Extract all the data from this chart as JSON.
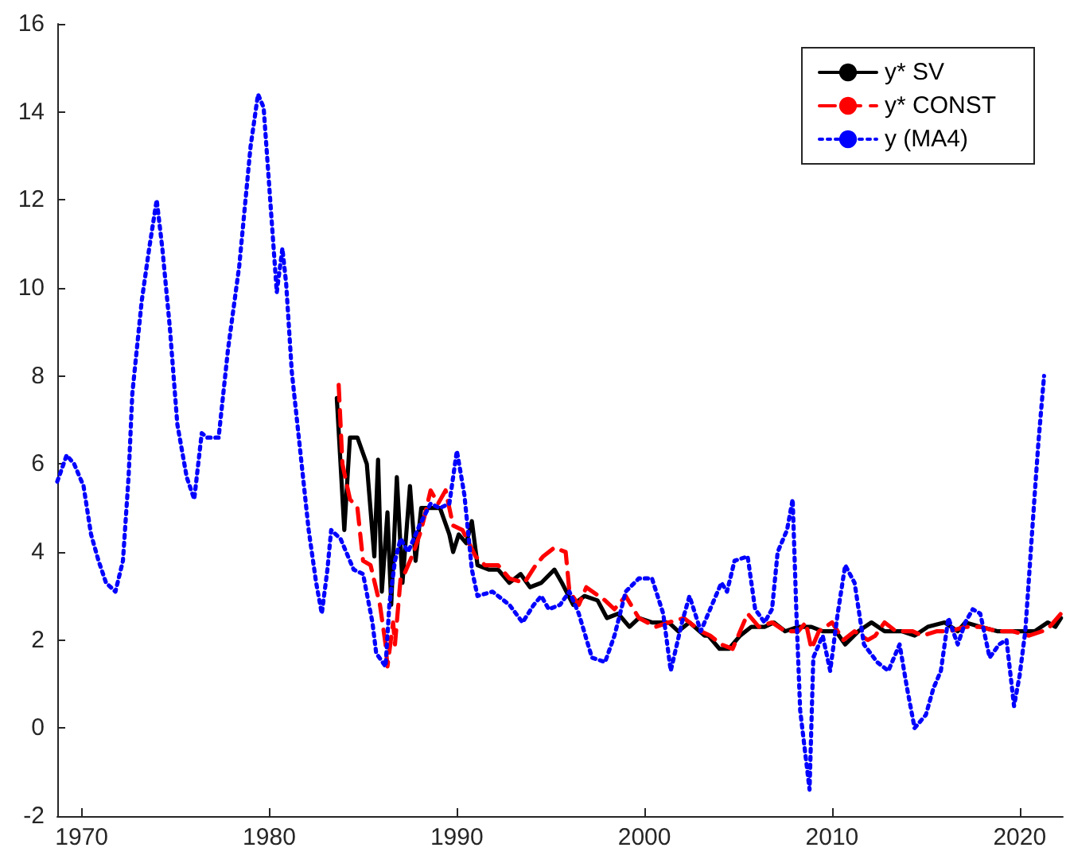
{
  "chart_data": {
    "type": "line",
    "xlim": [
      1968.7,
      2022.3
    ],
    "ylim": [
      -2,
      16
    ],
    "xticks": [
      1970,
      1980,
      1990,
      2000,
      2010,
      2020
    ],
    "yticks": [
      -2,
      0,
      2,
      4,
      6,
      8,
      10,
      12,
      14,
      16
    ],
    "grid": false,
    "legend": "top right",
    "marker": "none",
    "series": [
      {
        "name": "y* SV",
        "color": "#000000",
        "line_style": "solid",
        "x": [
          1983.6,
          1984.0,
          1984.3,
          1984.7,
          1985.2,
          1985.6,
          1985.8,
          1986.0,
          1986.3,
          1986.5,
          1986.8,
          1987.1,
          1987.5,
          1987.8,
          1988.1,
          1988.6,
          1989.1,
          1989.6,
          1989.8,
          1990.1,
          1990.5,
          1990.8,
          1991.1,
          1991.7,
          1992.2,
          1992.8,
          1993.4,
          1993.9,
          1994.5,
          1995.2,
          1995.6,
          1996.2,
          1996.8,
          1997.5,
          1998.0,
          1998.6,
          1999.2,
          1999.7,
          2000.4,
          2001.3,
          2001.8,
          2002.4,
          2003.2,
          2003.4,
          2004.0,
          2004.5,
          2005.1,
          2005.7,
          2006.4,
          2006.9,
          2007.5,
          2008.2,
          2008.9,
          2009.5,
          2010.2,
          2010.7,
          2011.4,
          2012.1,
          2012.8,
          2013.7,
          2014.4,
          2015.1,
          2016.0,
          2016.7,
          2017.1,
          2017.9,
          2018.8,
          2019.6,
          2020.8,
          2021.5,
          2021.9,
          2022.2
        ],
        "values": [
          7.5,
          4.5,
          6.6,
          6.6,
          6.0,
          3.9,
          6.1,
          3.1,
          4.9,
          2.8,
          5.7,
          3.3,
          5.5,
          3.8,
          5.0,
          5.0,
          5.0,
          4.4,
          4.0,
          4.4,
          4.2,
          4.7,
          3.7,
          3.6,
          3.6,
          3.3,
          3.5,
          3.2,
          3.3,
          3.6,
          3.3,
          2.8,
          3.0,
          2.9,
          2.5,
          2.6,
          2.3,
          2.5,
          2.4,
          2.4,
          2.2,
          2.4,
          2.1,
          2.1,
          1.8,
          1.8,
          2.1,
          2.3,
          2.3,
          2.4,
          2.2,
          2.3,
          2.3,
          2.2,
          2.2,
          1.9,
          2.2,
          2.4,
          2.2,
          2.2,
          2.1,
          2.3,
          2.4,
          2.2,
          2.4,
          2.3,
          2.2,
          2.2,
          2.2,
          2.4,
          2.3,
          2.5
        ]
      },
      {
        "name": "y* CONST",
        "color": "#ff0000",
        "line_style": "dashed",
        "x": [
          1983.7,
          1983.9,
          1984.3,
          1984.7,
          1985.0,
          1985.4,
          1985.9,
          1986.2,
          1986.3,
          1986.6,
          1986.7,
          1987.0,
          1987.1,
          1987.7,
          1988.1,
          1988.6,
          1989.0,
          1989.4,
          1989.8,
          1990.3,
          1991.0,
          1991.5,
          1992.2,
          1992.8,
          1993.6,
          1994.2,
          1994.6,
          1995.2,
          1995.8,
          1996.0,
          1996.5,
          1996.9,
          1997.9,
          1998.4,
          1999.0,
          1999.7,
          2000.6,
          2001.3,
          2002.1,
          2003.0,
          2003.5,
          2004.1,
          2004.7,
          2005.1,
          2005.5,
          2006.1,
          2006.8,
          2007.5,
          2008.2,
          2008.6,
          2008.9,
          2009.3,
          2010.0,
          2010.6,
          2011.2,
          2011.9,
          2012.3,
          2012.8,
          2013.4,
          2014.3,
          2014.8,
          2015.6,
          2016.3,
          2017.1,
          2017.9,
          2018.8,
          2019.6,
          2020.5,
          2021.2,
          2021.6,
          2022.2
        ],
        "values": [
          7.8,
          6.0,
          5.2,
          5.0,
          3.8,
          3.7,
          2.8,
          1.9,
          1.4,
          2.4,
          1.9,
          3.4,
          3.4,
          4.0,
          4.5,
          5.4,
          5.1,
          5.4,
          4.6,
          4.5,
          3.9,
          3.7,
          3.7,
          3.4,
          3.3,
          3.7,
          3.9,
          4.1,
          4.0,
          3.1,
          2.8,
          3.2,
          2.9,
          2.7,
          3.0,
          2.5,
          2.3,
          2.4,
          2.5,
          2.2,
          2.1,
          1.9,
          1.8,
          2.2,
          2.6,
          2.3,
          2.4,
          2.2,
          2.2,
          2.4,
          1.8,
          2.2,
          2.4,
          2.0,
          2.2,
          2.0,
          2.1,
          2.4,
          2.2,
          2.2,
          2.1,
          2.2,
          2.2,
          2.3,
          2.3,
          2.2,
          2.2,
          2.1,
          2.2,
          2.3,
          2.6
        ]
      },
      {
        "name": "y (MA4)",
        "color": "#0000ff",
        "line_style": "dotted",
        "x": [
          1968.7,
          1969.2,
          1969.6,
          1970.1,
          1970.5,
          1970.9,
          1971.3,
          1971.8,
          1972.2,
          1972.5,
          1972.7,
          1973.2,
          1973.6,
          1974.0,
          1974.3,
          1974.7,
          1975.1,
          1975.6,
          1976.0,
          1976.4,
          1976.7,
          1977.3,
          1977.8,
          1978.4,
          1979.0,
          1979.4,
          1979.7,
          1980.1,
          1980.4,
          1980.7,
          1980.9,
          1981.2,
          1981.5,
          1982.1,
          1982.5,
          1982.8,
          1983.1,
          1983.3,
          1983.8,
          1984.5,
          1985.0,
          1985.5,
          1985.7,
          1986.2,
          1986.4,
          1986.7,
          1987.0,
          1987.4,
          1988.0,
          1988.6,
          1989.1,
          1989.6,
          1990.0,
          1990.4,
          1990.8,
          1991.1,
          1991.9,
          1992.8,
          1993.5,
          1994.1,
          1994.5,
          1994.9,
          1995.5,
          1996.0,
          1996.5,
          1997.2,
          1997.9,
          1998.4,
          1999.0,
          1999.7,
          2000.4,
          2001.0,
          2001.4,
          2002.0,
          2002.4,
          2003.0,
          2003.5,
          2004.1,
          2004.4,
          2004.8,
          2005.5,
          2005.9,
          2006.4,
          2006.8,
          2007.1,
          2007.6,
          2007.9,
          2008.1,
          2008.3,
          2008.8,
          2009.0,
          2009.5,
          2009.9,
          2010.3,
          2010.7,
          2011.2,
          2011.7,
          2012.4,
          2013.0,
          2013.6,
          2014.0,
          2014.4,
          2015.0,
          2015.4,
          2015.8,
          2016.2,
          2016.7,
          2017.1,
          2017.5,
          2017.9,
          2018.4,
          2018.9,
          2019.3,
          2019.7,
          2020.0,
          2020.3,
          2020.8,
          2021.0,
          2021.3
        ],
        "values": [
          5.6,
          6.2,
          6.0,
          5.5,
          4.4,
          3.8,
          3.3,
          3.1,
          3.8,
          5.7,
          7.6,
          9.7,
          10.9,
          12.0,
          10.9,
          9.1,
          6.9,
          5.7,
          5.2,
          6.7,
          6.6,
          6.6,
          8.6,
          10.5,
          13.2,
          14.4,
          14.1,
          11.7,
          9.9,
          10.9,
          10.1,
          8.1,
          6.9,
          4.5,
          3.3,
          2.6,
          3.6,
          4.5,
          4.3,
          3.6,
          3.5,
          2.4,
          1.7,
          1.4,
          2.8,
          3.8,
          4.3,
          4.0,
          4.6,
          5.1,
          5.0,
          5.1,
          6.3,
          5.3,
          3.6,
          3.0,
          3.1,
          2.8,
          2.4,
          2.8,
          3.0,
          2.7,
          2.8,
          3.1,
          2.6,
          1.6,
          1.5,
          2.1,
          3.1,
          3.4,
          3.4,
          2.6,
          1.3,
          2.4,
          3.0,
          2.2,
          2.7,
          3.3,
          3.1,
          3.8,
          3.9,
          2.7,
          2.4,
          2.7,
          4.0,
          4.5,
          5.2,
          2.6,
          0.4,
          -1.4,
          1.6,
          2.1,
          1.3,
          2.6,
          3.7,
          3.3,
          1.9,
          1.5,
          1.3,
          1.9,
          0.9,
          0.0,
          0.3,
          0.9,
          1.3,
          2.5,
          1.9,
          2.4,
          2.7,
          2.6,
          1.6,
          1.9,
          2.0,
          0.5,
          1.2,
          2.2,
          5.3,
          6.5,
          8.0
        ]
      }
    ]
  }
}
